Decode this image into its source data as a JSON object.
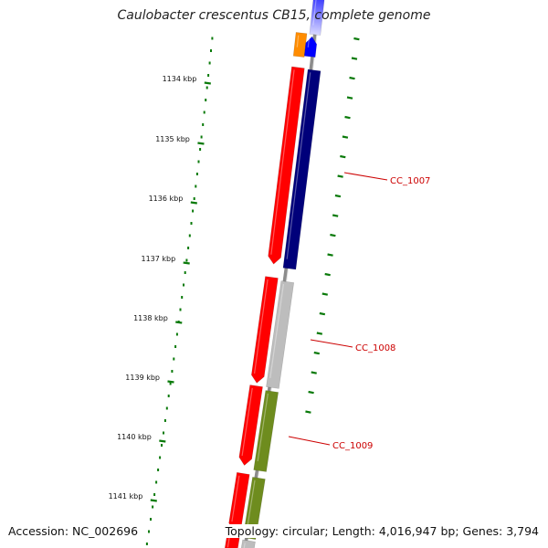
{
  "title": "Caulobacter crescentus CB15, complete genome",
  "accession": "Accession: NC_002696",
  "summary": "Topology: circular; Length: 4,016,947 bp; Genes: 3,794",
  "colors": {
    "background": "#ffffff",
    "backbone": "#8c8c8c",
    "ruler": "#0a7a0a",
    "label": "#cc0000",
    "red": "#ff0000",
    "navy": "#00007a",
    "gray": "#bdbdbd",
    "olive": "#6e8c1e",
    "blue": "#0000ff",
    "orange": "#ff8c00"
  },
  "ticks": [
    {
      "label": "1134 kbp"
    },
    {
      "label": "1135 kbp"
    },
    {
      "label": "1136 kbp"
    },
    {
      "label": "1137 kbp"
    },
    {
      "label": "1138 kbp"
    },
    {
      "label": "1139 kbp"
    },
    {
      "label": "1140 kbp"
    },
    {
      "label": "1141 kbp"
    }
  ],
  "gene_labels": [
    {
      "text": "CC_1007"
    },
    {
      "text": "CC_1008"
    },
    {
      "text": "CC_1009"
    }
  ]
}
